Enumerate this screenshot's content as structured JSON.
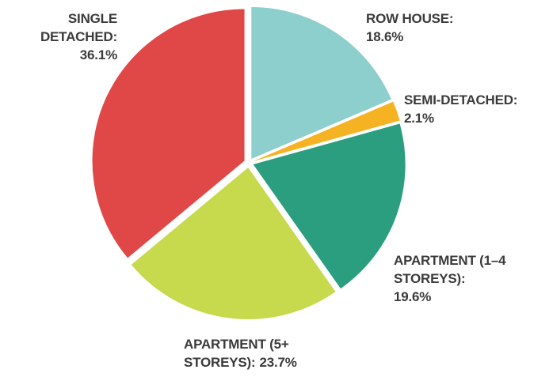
{
  "chart_data": {
    "type": "pie",
    "categories": [
      "ROW HOUSE:",
      "SEMI-DETACHED:",
      "APARTMENT (1–4 STOREYS):",
      "APARTMENT (5+ STOREYS):",
      "SINGLE DETACHED:"
    ],
    "values": [
      18.6,
      2.1,
      19.6,
      23.7,
      36.1
    ],
    "value_labels": [
      "18.6%",
      "2.1%",
      "19.6%",
      "23.7%",
      "36.1%"
    ],
    "colors": [
      "#8dcfcc",
      "#f5b324",
      "#2a9e7e",
      "#c7d94d",
      "#e04848"
    ]
  }
}
